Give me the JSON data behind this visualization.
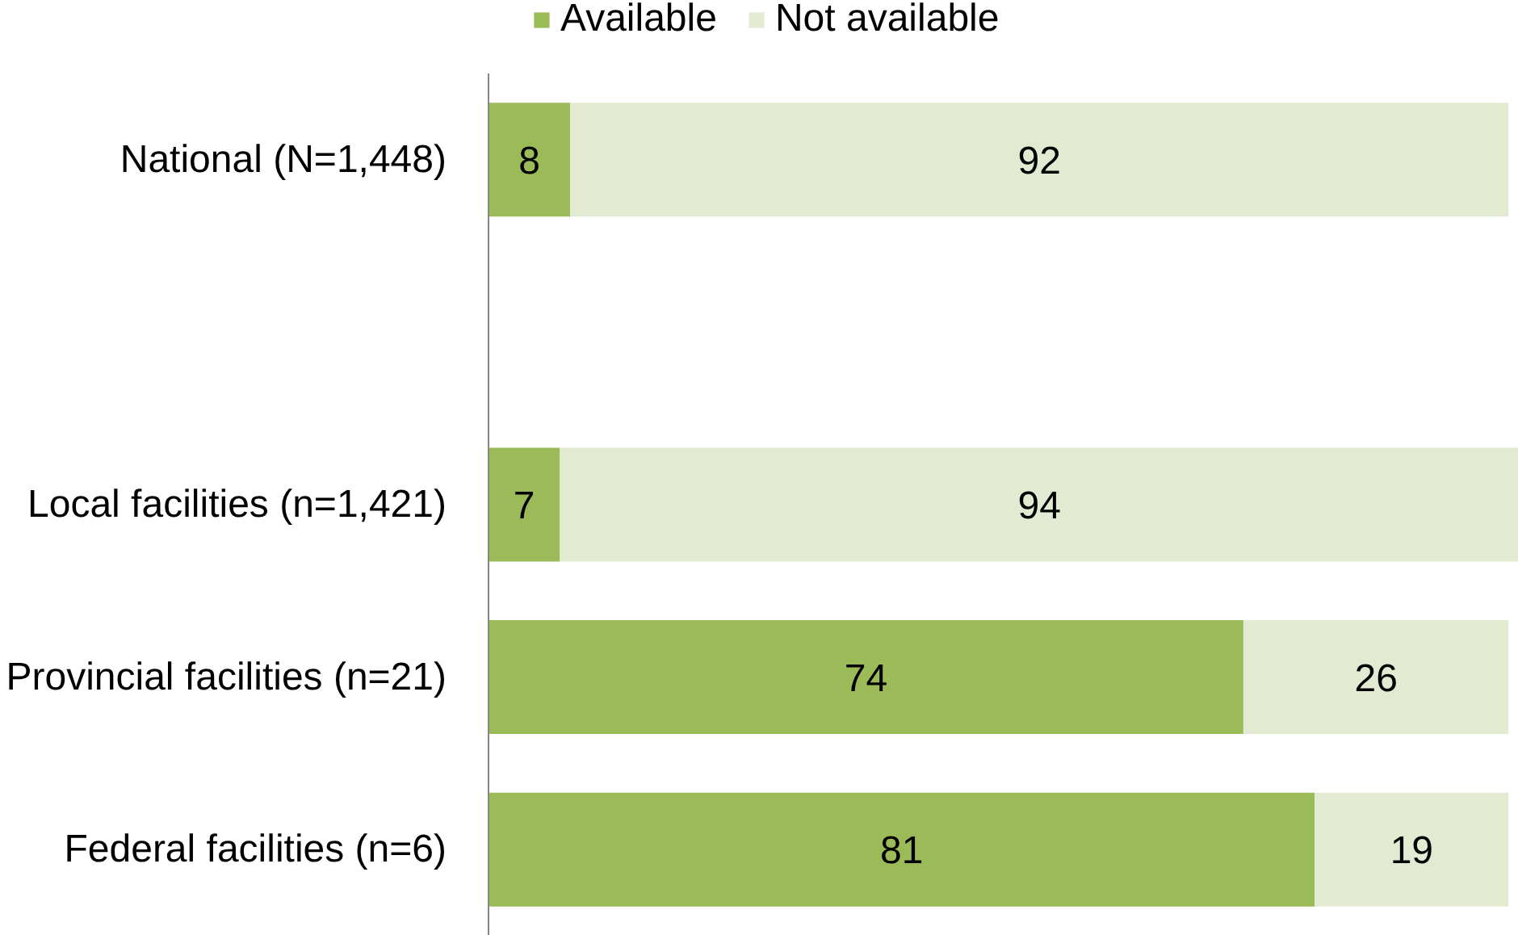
{
  "chart_data": {
    "type": "bar",
    "orientation": "horizontal",
    "stacked": true,
    "categories": [
      "National (N=1,448)",
      null,
      "Local facilities (n=1,421)",
      "Provincial facilities (n=21)",
      "Federal facilities (n=6)"
    ],
    "series": [
      {
        "name": "Available",
        "color": "#9bbb59",
        "values": [
          8,
          null,
          7,
          74,
          81
        ]
      },
      {
        "name": "Not available",
        "color": "#e2ebd2",
        "values": [
          92,
          null,
          94,
          26,
          19
        ]
      }
    ],
    "xlim": [
      0,
      101
    ],
    "data_labels": true,
    "legend": "top",
    "grid": false,
    "tick_labels": "y"
  }
}
